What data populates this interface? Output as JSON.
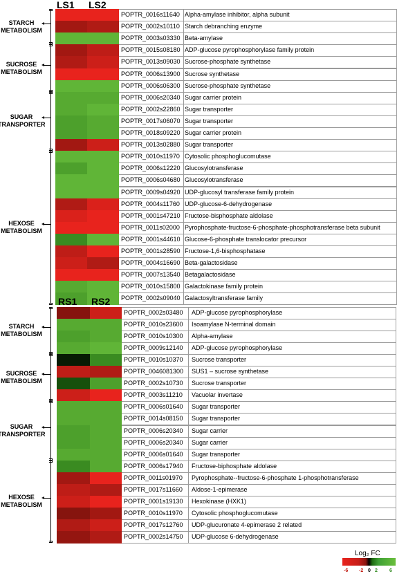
{
  "chart_data": [
    {
      "type": "heatmap",
      "columns": [
        "LS1",
        "LS2"
      ],
      "groups": [
        {
          "label": "STARCH\nMETABOLISM",
          "start": 0,
          "end": 2
        },
        {
          "label": "SUCROSE\nMETABOLISM",
          "start": 3,
          "end": 6
        },
        {
          "label": "SUGAR\nTRANSPORTER",
          "start": 7,
          "end": 11
        },
        {
          "label": "HEXOSE\nMETABOLISM",
          "start": 12,
          "end": 24
        }
      ],
      "rows": [
        {
          "id": "POPTR_0016s11640",
          "desc": "Alpha-amylase inhibitor, alpha subunit",
          "values": [
            -6,
            -6
          ]
        },
        {
          "id": "POPTR_0002s10110",
          "desc": "Starch debranching enzyme",
          "values": [
            -3.5,
            -4
          ]
        },
        {
          "id": "POPTR_0003s03330",
          "desc": "Beta-amylase",
          "values": [
            5.5,
            5.5
          ]
        },
        {
          "id": "POPTR_0015s08180",
          "desc": "ADP-glucose pyrophosphorylase family protein",
          "values": [
            -3.5,
            -4.5
          ]
        },
        {
          "id": "POPTR_0013s09030",
          "desc": "Sucrose-phosphate synthetase",
          "values": [
            -4,
            -5
          ]
        },
        {
          "id": "POPTR_0006s13900",
          "desc": "Sucrose synthetase",
          "values": [
            -6,
            -6
          ]
        },
        {
          "id": "POPTR_0006s06300",
          "desc": "Sucrose-phosphate synthetase",
          "values": [
            5.5,
            5.5
          ]
        },
        {
          "id": "POPTR_0006s20340",
          "desc": "Sugar carrier protein",
          "values": [
            5,
            5
          ]
        },
        {
          "id": "POPTR_0002s22860",
          "desc": "Sugar transporter",
          "values": [
            5,
            5.5
          ]
        },
        {
          "id": "POPTR_0017s06070",
          "desc": "Sugar transporter",
          "values": [
            4.5,
            5
          ]
        },
        {
          "id": "POPTR_0018s09220",
          "desc": "Sugar carrier protein",
          "values": [
            4.5,
            5
          ]
        },
        {
          "id": "POPTR_0013s02880",
          "desc": "Sugar transporter",
          "values": [
            -3.5,
            -5
          ]
        },
        {
          "id": "POPTR_0010s11970",
          "desc": "Cytosolic phosphoglucomutase",
          "values": [
            5.5,
            5.5
          ]
        },
        {
          "id": "POPTR_0006s12220",
          "desc": "Glucosylotransferase",
          "values": [
            4.5,
            5.5
          ]
        },
        {
          "id": "POPTR_0006s04680",
          "desc": "Glucosylotransferase",
          "values": [
            5.5,
            5.5
          ]
        },
        {
          "id": "POPTR_0009s04920",
          "desc": "UDP-glucosyl transferase family protein",
          "values": [
            5.5,
            5.5
          ]
        },
        {
          "id": "POPTR_0004s11760",
          "desc": "UDP-glucose-6-dehydrogenase",
          "values": [
            -4,
            -5.5
          ]
        },
        {
          "id": "POPTR_0001s47210",
          "desc": "Fructose-bisphosphate aldolase",
          "values": [
            -5.5,
            -6
          ]
        },
        {
          "id": "POPTR_0011s02000",
          "desc": "Pyrophosphate-fructose-6-phosphate-phosphotransferase beta subunit",
          "values": [
            -6,
            -6
          ]
        },
        {
          "id": "POPTR_0001s44610",
          "desc": "Glucose-6-phosphate translocator precursor",
          "values": [
            3.5,
            5.5
          ]
        },
        {
          "id": "POPTR_0001s28590",
          "desc": "Fructose-1,6-bisphosphatase",
          "values": [
            -4.5,
            -6
          ]
        },
        {
          "id": "POPTR_0004s16690",
          "desc": "Beta-galactosidase",
          "values": [
            -5,
            -4
          ]
        },
        {
          "id": "POPTR_0007s13540",
          "desc": "Betagalactosidase",
          "values": [
            -6,
            -6
          ]
        },
        {
          "id": "POPTR_0010s15800",
          "desc": "Galactokinase family protein",
          "values": [
            5,
            5.5
          ]
        },
        {
          "id": "POPTR_0002s09040",
          "desc": "Galactosyltransferase family",
          "values": [
            4.5,
            5.5
          ]
        }
      ]
    },
    {
      "type": "heatmap",
      "columns": [
        "RS1",
        "RS2"
      ],
      "groups": [
        {
          "label": "STARCH\nMETABOLISM",
          "start": 0,
          "end": 3
        },
        {
          "label": "SUCROSE\nMETABOLISM",
          "start": 4,
          "end": 7
        },
        {
          "label": "SUGAR\nTRANSPORTER",
          "start": 8,
          "end": 12
        },
        {
          "label": "HEXOSE\nMETABOLISM",
          "start": 13,
          "end": 19
        }
      ],
      "rows": [
        {
          "id": "POPTR_0002s03480",
          "desc": "ADP-glucose pyrophosphorylase",
          "values": [
            -2.5,
            -5
          ]
        },
        {
          "id": "POPTR_0010s23600",
          "desc": "Isoamylase N-terminal domain",
          "values": [
            5,
            5
          ]
        },
        {
          "id": "POPTR_0010s10300",
          "desc": "Alpha-amylase",
          "values": [
            4.5,
            5
          ]
        },
        {
          "id": "POPTR_0009s12140",
          "desc": "ADP-glucose pyrophosphorylase",
          "values": [
            5,
            5.5
          ]
        },
        {
          "id": "POPTR_0010s10370",
          "desc": "Sucrose transporter",
          "values": [
            0.5,
            3.5
          ]
        },
        {
          "id": "POPTR_0046081300",
          "desc": "SUS1 – sucrose synthetase",
          "values": [
            -4.5,
            -4
          ]
        },
        {
          "id": "POPTR_0002s10730",
          "desc": "Sucrose transporter",
          "values": [
            1.5,
            4.5
          ]
        },
        {
          "id": "POPTR_0003s11210",
          "desc": "Vacuolar invertase",
          "values": [
            -5,
            -6
          ]
        },
        {
          "id": "POPTR_0006s01640",
          "desc": "Sugar transporter",
          "values": [
            5,
            5
          ]
        },
        {
          "id": "POPTR_0014s08150",
          "desc": "Sugar transporter",
          "values": [
            5,
            5
          ]
        },
        {
          "id": "POPTR_0006s20340",
          "desc": "Sugar carrier",
          "values": [
            4.5,
            5
          ]
        },
        {
          "id": "POPTR_0006s20340",
          "desc": "Sugar carrier",
          "values": [
            4.5,
            5
          ]
        },
        {
          "id": "POPTR_0006s01640",
          "desc": "Sugar transporter",
          "values": [
            5,
            5
          ]
        },
        {
          "id": "POPTR_0006s17940",
          "desc": "Fructose-biphosphate aldolase",
          "values": [
            3.5,
            5
          ]
        },
        {
          "id": "POPTR_0011s01970",
          "desc": "Pyrophosphate--fructose-6-phosphate 1-phosphotransferase",
          "values": [
            -3.5,
            -6
          ]
        },
        {
          "id": "POPTR_0017s11660",
          "desc": "Aldose-1-epimerase",
          "values": [
            -4.5,
            -4
          ]
        },
        {
          "id": "POPTR_0001s19130",
          "desc": "Hexokinase (HXK1)",
          "values": [
            -5,
            -6
          ]
        },
        {
          "id": "POPTR_0010s11970",
          "desc": "Cytosolic phosphoglucomutase",
          "values": [
            -2.5,
            -3.5
          ]
        },
        {
          "id": "POPTR_0017s12760",
          "desc": "UDP-glucuronate 4-epimerase 2 related",
          "values": [
            -4,
            -5
          ]
        },
        {
          "id": "POPTR_0002s14750",
          "desc": "UDP-glucose 6-dehydrogenase",
          "values": [
            -3,
            -4
          ]
        }
      ]
    }
  ],
  "legend": {
    "title": "Log₂ FC",
    "ticks": [
      "-6",
      "-2",
      "0",
      "2",
      "6"
    ],
    "range": [
      -6,
      6
    ],
    "colors": {
      "low": "#e8231d",
      "mid": "#000000",
      "high": "#6abf3c"
    }
  }
}
